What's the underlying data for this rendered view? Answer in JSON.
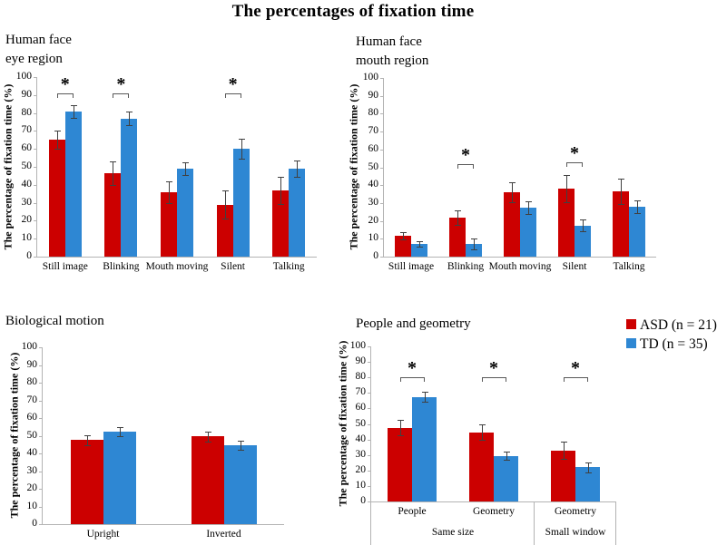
{
  "figure_title": "The percentages of fixation time",
  "legend": {
    "items": [
      {
        "label": "ASD (n = 21)",
        "color": "#cc0000"
      },
      {
        "label": "TD (n = 35)",
        "color": "#2e87d3"
      }
    ]
  },
  "chart_data": [
    {
      "type": "bar",
      "title_lines": [
        "Human face",
        "eye region"
      ],
      "ylabel": "The percentage of fixation time (%)",
      "ylim": [
        0,
        100
      ],
      "ytick_step": 10,
      "grid": false,
      "categories": [
        "Still image",
        "Blinking",
        "Mouth moving",
        "Silent",
        "Talking"
      ],
      "series": [
        {
          "name": "ASD (n = 21)",
          "color": "#cc0000",
          "values": [
            65,
            46.5,
            36,
            29,
            37
          ],
          "errors": [
            5,
            6.5,
            6,
            8,
            7.5
          ]
        },
        {
          "name": "TD (n = 35)",
          "color": "#2e87d3",
          "values": [
            81,
            77,
            49,
            60,
            49
          ],
          "errors": [
            3.5,
            4,
            3.5,
            5.5,
            4.5
          ]
        }
      ],
      "significance": [
        {
          "category_index": 0,
          "bracket_y": 91,
          "symbol": "*"
        },
        {
          "category_index": 1,
          "bracket_y": 91,
          "symbol": "*"
        },
        {
          "category_index": 3,
          "bracket_y": 91,
          "symbol": "*"
        }
      ]
    },
    {
      "type": "bar",
      "title_lines": [
        "Human face",
        "mouth region"
      ],
      "ylabel": "The percentage of fixation time (%)",
      "ylim": [
        0,
        100
      ],
      "ytick_step": 10,
      "grid": false,
      "categories": [
        "Still image",
        "Blinking",
        "Mouth moving",
        "Silent",
        "Talking"
      ],
      "series": [
        {
          "name": "ASD (n = 21)",
          "color": "#cc0000",
          "values": [
            11.5,
            22,
            36,
            38,
            36.5
          ],
          "errors": [
            2,
            4,
            5.5,
            7.5,
            7
          ]
        },
        {
          "name": "TD (n = 35)",
          "color": "#2e87d3",
          "values": [
            7,
            7,
            27.5,
            17.5,
            28
          ],
          "errors": [
            1.5,
            3,
            3.5,
            3.5,
            3.5
          ]
        }
      ],
      "significance": [
        {
          "category_index": 1,
          "bracket_y": 52,
          "symbol": "*"
        },
        {
          "category_index": 3,
          "bracket_y": 53,
          "symbol": "*"
        }
      ]
    },
    {
      "type": "bar",
      "title_lines": [
        "Biological motion"
      ],
      "ylabel": "The percentage of fixation time (%)",
      "ylim": [
        0,
        100
      ],
      "ytick_step": 10,
      "grid": false,
      "categories": [
        "Upright",
        "Inverted"
      ],
      "series": [
        {
          "name": "ASD (n = 21)",
          "color": "#cc0000",
          "values": [
            47.5,
            49.5
          ],
          "errors": [
            3,
            3
          ]
        },
        {
          "name": "TD (n = 35)",
          "color": "#2e87d3",
          "values": [
            52.5,
            44.5
          ],
          "errors": [
            2.5,
            2.5
          ]
        }
      ],
      "significance": []
    },
    {
      "type": "bar",
      "title_lines": [
        "People and geometry"
      ],
      "ylabel": "The percentage of fixation time (%)",
      "ylim": [
        0,
        100
      ],
      "ytick_step": 10,
      "grid": false,
      "categories": [
        "People",
        "Geometry",
        "Geometry"
      ],
      "groups": [
        {
          "label": "Same size",
          "span": [
            0,
            1
          ]
        },
        {
          "label": "Small window",
          "span": [
            2,
            2
          ]
        }
      ],
      "series": [
        {
          "name": "ASD (n = 21)",
          "color": "#cc0000",
          "values": [
            47.5,
            44.5,
            33
          ],
          "errors": [
            5,
            5,
            5.5
          ]
        },
        {
          "name": "TD (n = 35)",
          "color": "#2e87d3",
          "values": [
            67.5,
            29.5,
            22
          ],
          "errors": [
            3,
            2.5,
            3
          ]
        }
      ],
      "significance": [
        {
          "category_index": 0,
          "bracket_y": 80,
          "symbol": "*"
        },
        {
          "category_index": 1,
          "bracket_y": 80,
          "symbol": "*"
        },
        {
          "category_index": 2,
          "bracket_y": 80,
          "symbol": "*"
        }
      ]
    }
  ]
}
